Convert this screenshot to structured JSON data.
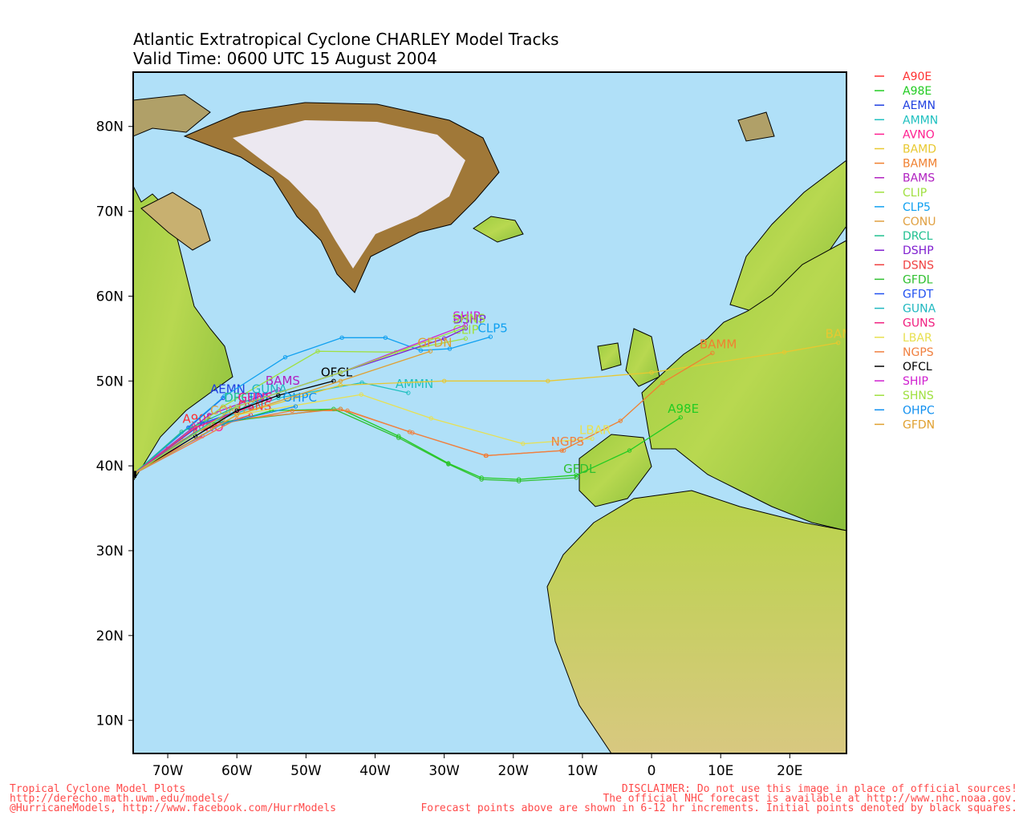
{
  "chart_data": {
    "type": "map",
    "title": "Atlantic Extratropical Cyclone CHARLEY Model Tracks",
    "subtitle": "Valid Time: 0600 UTC 15 August 2004",
    "xlim": [
      -75,
      28.2
    ],
    "ylim": [
      6.1,
      86.4
    ],
    "xticks": [
      {
        "value": -70,
        "label": "70W"
      },
      {
        "value": -60,
        "label": "60W"
      },
      {
        "value": -50,
        "label": "50W"
      },
      {
        "value": -40,
        "label": "40W"
      },
      {
        "value": -30,
        "label": "30W"
      },
      {
        "value": -20,
        "label": "20W"
      },
      {
        "value": -10,
        "label": "10W"
      },
      0,
      {
        "value": 10,
        "label": "10E"
      },
      {
        "value": 20,
        "label": "20E"
      }
    ],
    "yticks": [
      {
        "value": 10,
        "label": "10N"
      },
      {
        "value": 20,
        "label": "20N"
      },
      {
        "value": 30,
        "label": "30N"
      },
      {
        "value": 40,
        "label": "40N"
      },
      {
        "value": 50,
        "label": "50N"
      },
      {
        "value": 60,
        "label": "60N"
      },
      {
        "value": 70,
        "label": "70N"
      },
      {
        "value": 80,
        "label": "80N"
      }
    ],
    "grid": true,
    "series": [
      {
        "name": "A90E",
        "color": "#ff3030",
        "lon": [
          -75,
          -70,
          -66
        ],
        "lat": [
          39,
          42,
          44.5
        ]
      },
      {
        "name": "A98E",
        "color": "#22cc22",
        "lon": [
          -75,
          -66,
          -55,
          -45,
          -36.6,
          -29.4,
          -24.6,
          -19.2,
          -10.9,
          -3.2,
          4.2
        ],
        "lat": [
          39,
          44,
          46.5,
          46.7,
          43.5,
          40.3,
          38.6,
          38.4,
          38.9,
          41.8,
          45.7
        ]
      },
      {
        "name": "AEMN",
        "color": "#2040e0",
        "lon": [
          -75,
          -67,
          -62
        ],
        "lat": [
          39,
          44.5,
          48
        ]
      },
      {
        "name": "AMMN",
        "color": "#20c0c0",
        "lon": [
          -75,
          -64,
          -54,
          -41.9,
          -35.2
        ],
        "lat": [
          39,
          45,
          48,
          49.8,
          48.6
        ]
      },
      {
        "name": "AVNO",
        "color": "#ff2090",
        "lon": [
          -75,
          -70,
          -65
        ],
        "lat": [
          39,
          41.5,
          43.5
        ]
      },
      {
        "name": "BAMD",
        "color": "#e8c830",
        "lon": [
          -75,
          -60,
          -45,
          -30,
          -15,
          0,
          19.2,
          27
        ],
        "lat": [
          39,
          46,
          49.5,
          50,
          50,
          51,
          53.4,
          54.5
        ]
      },
      {
        "name": "BAMM",
        "color": "#f08030",
        "lon": [
          -75,
          -62,
          -52,
          -44,
          -35,
          -24,
          -13,
          -4.5,
          1.6,
          8.8
        ],
        "lat": [
          39,
          45,
          46.5,
          46.5,
          44,
          41.2,
          41.8,
          45.3,
          49.8,
          53.3
        ]
      },
      {
        "name": "BAMS",
        "color": "#b020c0",
        "lon": [
          -75,
          -64,
          -54
        ],
        "lat": [
          39,
          46,
          49
        ]
      },
      {
        "name": "CLIP",
        "color": "#a0e040",
        "lon": [
          -75,
          -62,
          -48.3,
          -37,
          -26.9
        ],
        "lat": [
          39,
          47,
          53.5,
          53.4,
          55
        ]
      },
      {
        "name": "CLP5",
        "color": "#10a0f0",
        "lon": [
          -75,
          -61.8,
          -53,
          -44.8,
          -38.5,
          -33.4,
          -29.2,
          -23.3
        ],
        "lat": [
          39,
          48.2,
          52.8,
          55.1,
          55.1,
          53.6,
          53.8,
          55.2
        ]
      },
      {
        "name": "CONU",
        "color": "#e0a040",
        "lon": [
          -75,
          -68,
          -62
        ],
        "lat": [
          39,
          43,
          45.5
        ]
      },
      {
        "name": "DRCL",
        "color": "#20c090",
        "lon": [
          -75,
          -68,
          -60
        ],
        "lat": [
          39,
          44,
          47
        ]
      },
      {
        "name": "DSHP",
        "color": "#8020d0",
        "lon": [
          -75,
          -60,
          -45,
          -30,
          -26.9
        ],
        "lat": [
          39,
          47,
          51,
          55,
          56.2
        ]
      },
      {
        "name": "DSNS",
        "color": "#f04040",
        "lon": [
          -75,
          -66,
          -58
        ],
        "lat": [
          39,
          44,
          46
        ]
      },
      {
        "name": "GFDL",
        "color": "#30c030",
        "lon": [
          -75,
          -64,
          -46,
          -36.6,
          -29.4,
          -24.6,
          -19.2,
          -10.9
        ],
        "lat": [
          39,
          45,
          46.7,
          43.3,
          40.2,
          38.4,
          38.2,
          38.6
        ]
      },
      {
        "name": "GFDT",
        "color": "#2050f0",
        "lon": [
          -75,
          -65,
          -58
        ],
        "lat": [
          39,
          45,
          47
        ]
      },
      {
        "name": "GUNA",
        "color": "#20b8c0",
        "lon": [
          -75,
          -64,
          -56
        ],
        "lat": [
          39,
          45,
          48
        ]
      },
      {
        "name": "GUNS",
        "color": "#f02080",
        "lon": [
          -75,
          -66,
          -58
        ],
        "lat": [
          39,
          44.5,
          47
        ]
      },
      {
        "name": "LBAR",
        "color": "#e8e050",
        "lon": [
          -75,
          -60,
          -42,
          -31.9,
          -18.6,
          -8.6
        ],
        "lat": [
          39,
          46,
          48.4,
          45.6,
          42.6,
          43.2
        ]
      },
      {
        "name": "NGPS",
        "color": "#f08040",
        "lon": [
          -75,
          -60,
          -45,
          -34.6,
          -23.9,
          -12.7
        ],
        "lat": [
          39,
          45.5,
          46.7,
          43.9,
          41.2,
          41.8
        ]
      },
      {
        "name": "OFCL",
        "color": "#000000",
        "lon": [
          -75,
          -66,
          -60,
          -54,
          -46
        ],
        "lat": [
          39,
          43.5,
          46.5,
          48.3,
          50
        ]
      },
      {
        "name": "SHIP",
        "color": "#d020d0",
        "lon": [
          -75,
          -60,
          -45,
          -26.9
        ],
        "lat": [
          39,
          47,
          51,
          56.6
        ]
      },
      {
        "name": "SHNS",
        "color": "#a0e040",
        "lon": [
          -75,
          -60,
          -45,
          -27
        ],
        "lat": [
          39,
          47,
          51,
          56.3
        ]
      },
      {
        "name": "OHPC",
        "color": "#1090f0",
        "lon": [
          -75,
          -62,
          -51.5
        ],
        "lat": [
          39,
          45,
          47
        ]
      },
      {
        "name": "GFDN",
        "color": "#e0a030",
        "lon": [
          -75,
          -60,
          -45,
          -32
        ],
        "lat": [
          39,
          46,
          50,
          53.5
        ]
      }
    ],
    "footer_left": [
      "Tropical Cyclone Model Plots",
      "http://derecho.math.uwm.edu/models/",
      "@HurricaneModels, http://www.facebook.com/HurrModels"
    ],
    "footer_right": [
      "DISCLAIMER: Do not use this image in place of official sources!",
      "The official NHC forecast is available at http://www.nhc.noaa.gov.",
      "Forecast points above are shown in 6-12 hr increments. Initial points denoted by black squares."
    ]
  }
}
